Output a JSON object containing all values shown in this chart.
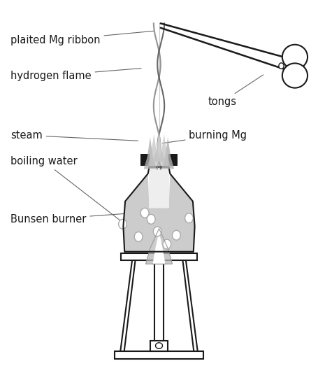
{
  "bg_color": "#ffffff",
  "line_color": "#1a1a1a",
  "gray_fill": "#c8c8c8",
  "labels": {
    "plaited_mg": "plaited Mg ribbon",
    "hydrogen_flame": "hydrogen flame",
    "tongs": "tongs",
    "steam": "steam",
    "burning_mg": "burning Mg",
    "boiling_water": "boiling water",
    "bunsen_burner": "Bunsen burner"
  },
  "fontsize": 10.5
}
